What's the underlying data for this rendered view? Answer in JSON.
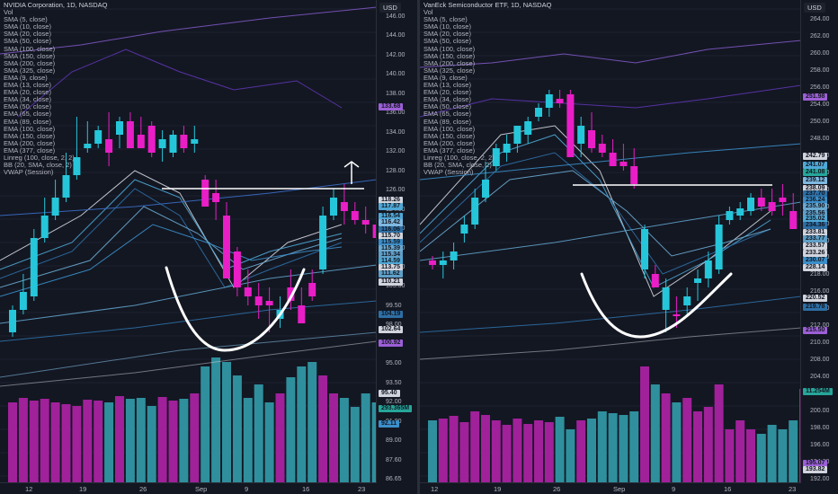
{
  "left": {
    "legend": [
      "NVIDIA Corporation, 1D, NASDAQ",
      "Vol",
      "SMA (5, close)",
      "SMA (10, close)",
      "SMA (20, close)",
      "SMA (50, close)",
      "SMA (100, close)",
      "SMA (150, close)",
      "SMA (200, close)",
      "SMA (325, close)",
      "EMA (9, close)",
      "EMA (13, close)",
      "EMA (20, close)",
      "EMA (34, close)",
      "EMA (50, close)",
      "EMA (65, close)",
      "EMA (89, close)",
      "EMA (100, close)",
      "EMA (150, close)",
      "EMA (200, close)",
      "EMA (377, close)",
      "Linreg (100, close, 2, 2)",
      "BB (20, SMA, close, 2)",
      "VWAP (Session)"
    ],
    "axis_unit": "USD",
    "ticks": [
      "146.00",
      "144.00",
      "142.00",
      "140.00",
      "138.00",
      "136.00",
      "134.00",
      "132.00",
      "128.00",
      "126.00",
      "124.00",
      "122.00",
      "120.00",
      "107.00",
      "105.00",
      "99.50",
      "98.00",
      "96.50",
      "95.00",
      "93.50",
      "92.00",
      "91.00",
      "89.00",
      "87.60",
      "86.65"
    ],
    "tags": [
      {
        "label": "133.68",
        "color": "#9c5fd6"
      },
      {
        "label": "118.26",
        "color": "#d1d4dc"
      },
      {
        "label": "117.87",
        "color": "#4fa8d6"
      },
      {
        "label": "116.54",
        "color": "#4fa8d6"
      },
      {
        "label": "116.42",
        "color": "#7fb8e0"
      },
      {
        "label": "116.06",
        "color": "#2d6fa5"
      },
      {
        "label": "115.70",
        "color": "#d1d4dc"
      },
      {
        "label": "115.59",
        "color": "#3b8ec9"
      },
      {
        "label": "115.39",
        "color": "#6aa9cf"
      },
      {
        "label": "115.34",
        "color": "#5fa0c8"
      },
      {
        "label": "114.59",
        "color": "#4fa8d6"
      },
      {
        "label": "113.75",
        "color": "#d1d4dc"
      },
      {
        "label": "111.62",
        "color": "#5fa0c8"
      },
      {
        "label": "110.21",
        "color": "#d1d4dc"
      },
      {
        "label": "104.19",
        "color": "#2d6fa5"
      },
      {
        "label": "102.64",
        "color": "#d1d4dc"
      },
      {
        "label": "100.92",
        "color": "#9c5fd6"
      },
      {
        "label": "95.40",
        "color": "#d1d4dc"
      },
      {
        "label": "293.365M",
        "color": "#26a69a"
      },
      {
        "label": "92.11",
        "color": "#3b8ec9"
      }
    ],
    "time_labels": [
      "12",
      "19",
      "26",
      "Sep",
      "9",
      "16",
      "23"
    ]
  },
  "right": {
    "legend": [
      "VanEck Semiconductor ETF, 1D, NASDAQ",
      "Vol",
      "SMA (5, close)",
      "SMA (10, close)",
      "SMA (20, close)",
      "SMA (50, close)",
      "SMA (100, close)",
      "SMA (150, close)",
      "SMA (200, close)",
      "SMA (325, close)",
      "EMA (9, close)",
      "EMA (13, close)",
      "EMA (20, close)",
      "EMA (34, close)",
      "EMA (50, close)",
      "EMA (65, close)",
      "EMA (89, close)",
      "EMA (100, close)",
      "EMA (150, close)",
      "EMA (200, close)",
      "EMA (377, close)",
      "Linreg (100, close, 2, 2)",
      "BB (20, SMA, close, 2)",
      "VWAP (Session)"
    ],
    "axis_unit": "USD",
    "ticks": [
      "264.00",
      "262.00",
      "260.00",
      "258.00",
      "256.00",
      "254.00",
      "250.00",
      "248.00",
      "246.00",
      "244.00",
      "242.00",
      "240.00",
      "226.00",
      "224.00",
      "222.00",
      "218.00",
      "216.00",
      "214.00",
      "212.00",
      "210.00",
      "208.00",
      "204.00",
      "202.00",
      "200.00",
      "198.00",
      "196.00",
      "194.00",
      "192.00"
    ],
    "tags": [
      {
        "label": "251.98",
        "color": "#9c5fd6"
      },
      {
        "label": "242.79",
        "color": "#d1d4dc"
      },
      {
        "label": "241.07",
        "color": "#4fa8d6"
      },
      {
        "label": "241.08",
        "color": "#26a69a"
      },
      {
        "label": "239.12",
        "color": "#7fb8e0"
      },
      {
        "label": "238.09",
        "color": "#d1d4dc"
      },
      {
        "label": "237.70",
        "color": "#2d6fa5"
      },
      {
        "label": "236.24",
        "color": "#3b8ec9"
      },
      {
        "label": "235.90",
        "color": "#6aa9cf"
      },
      {
        "label": "235.56",
        "color": "#5fa0c8"
      },
      {
        "label": "235.02",
        "color": "#4fa8d6"
      },
      {
        "label": "234.36",
        "color": "#2d6fa5"
      },
      {
        "label": "233.81",
        "color": "#d1d4dc"
      },
      {
        "label": "233.77",
        "color": "#5fa0c8"
      },
      {
        "label": "233.57",
        "color": "#d1d4dc"
      },
      {
        "label": "233.26",
        "color": "#d1d4dc"
      },
      {
        "label": "230.07",
        "color": "#3b8ec9"
      },
      {
        "label": "228.14",
        "color": "#d1d4dc"
      },
      {
        "label": "220.52",
        "color": "#d1d4dc"
      },
      {
        "label": "219.78",
        "color": "#2d6fa5"
      },
      {
        "label": "215.50",
        "color": "#9c5fd6"
      },
      {
        "label": "11.254M",
        "color": "#26a69a"
      },
      {
        "label": "195.07",
        "color": "#9c5fd6"
      },
      {
        "label": "193.82",
        "color": "#d1d4dc"
      }
    ],
    "time_labels": [
      "12",
      "19",
      "26",
      "Sep",
      "9",
      "16",
      "23"
    ]
  },
  "colors": {
    "bg": "#131722",
    "up": "#26c6da",
    "down": "#e91ec6",
    "vol_up": "#2f8f9d",
    "vol_down": "#a0219a"
  }
}
